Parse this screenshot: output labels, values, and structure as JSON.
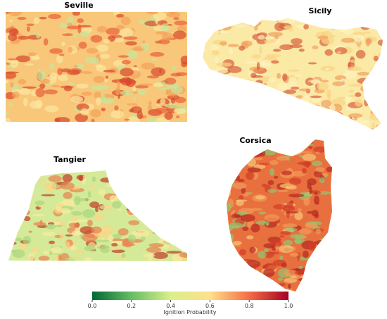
{
  "panels": [
    {
      "title": "Seville"
    },
    {
      "title": "Sicily"
    },
    {
      "title": "Tangier"
    },
    {
      "title": "Corsica"
    }
  ],
  "colorbar": {
    "label": "Ignition Probability",
    "lim": [
      0,
      1
    ],
    "ticks": [
      {
        "value": 0,
        "label": "0.0"
      },
      0.2,
      0.4,
      0.6,
      0.8,
      {
        "value": 1,
        "label": "1.0"
      }
    ],
    "colors": [
      "#006837",
      "#66bd63",
      "#d9ef8b",
      "#fee08b",
      "#f46d43",
      "#a50026"
    ]
  }
}
